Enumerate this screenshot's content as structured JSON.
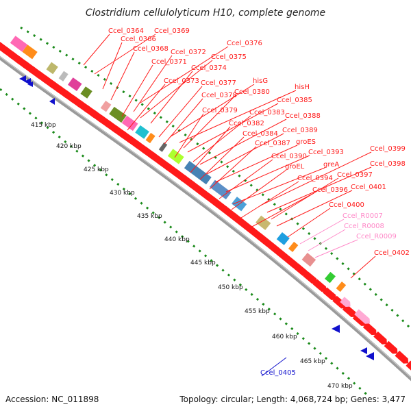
{
  "title": "Clostridium cellulolyticum H10, complete genome",
  "footer": {
    "accession": "Accession: NC_011898",
    "stats": "Topology: circular; Length: 4,068,724 bp; Genes: 3,477"
  },
  "colors": {
    "cds": "#ff1a1a",
    "rna_label": "#ff88c8",
    "reverse_label": "#1010cc",
    "backbone": "#9a9a9a",
    "ticks": "#1a8a1a"
  },
  "scale_labels": [
    "415 kbp",
    "420 kbp",
    "425 kbp",
    "430 kbp",
    "435 kbp",
    "440 kbp",
    "445 kbp",
    "450 kbp",
    "455 kbp",
    "460 kbp",
    "465 kbp",
    "470 kbp"
  ],
  "gene_labels": [
    {
      "text": "Ccel_0364",
      "kind": "cds"
    },
    {
      "text": "Ccel_0369",
      "kind": "cds"
    },
    {
      "text": "Ccel_0366",
      "kind": "cds"
    },
    {
      "text": "Ccel_0376",
      "kind": "cds"
    },
    {
      "text": "Ccel_0368",
      "kind": "cds"
    },
    {
      "text": "Ccel_0372",
      "kind": "cds"
    },
    {
      "text": "Ccel_0375",
      "kind": "cds"
    },
    {
      "text": "Ccel_0371",
      "kind": "cds"
    },
    {
      "text": "Ccel_0374",
      "kind": "cds"
    },
    {
      "text": "Ccel_0373",
      "kind": "cds"
    },
    {
      "text": "Ccel_0377",
      "kind": "cds"
    },
    {
      "text": "hisG",
      "kind": "cds"
    },
    {
      "text": "hisH",
      "kind": "cds"
    },
    {
      "text": "Ccel_0378",
      "kind": "cds"
    },
    {
      "text": "Ccel_0380",
      "kind": "cds"
    },
    {
      "text": "Ccel_0385",
      "kind": "cds"
    },
    {
      "text": "Ccel_0379",
      "kind": "cds"
    },
    {
      "text": "Ccel_0383",
      "kind": "cds"
    },
    {
      "text": "Ccel_0388",
      "kind": "cds"
    },
    {
      "text": "Ccel_0382",
      "kind": "cds"
    },
    {
      "text": "Ccel_0389",
      "kind": "cds"
    },
    {
      "text": "Ccel_0384",
      "kind": "cds"
    },
    {
      "text": "groES",
      "kind": "cds"
    },
    {
      "text": "Ccel_0387",
      "kind": "cds"
    },
    {
      "text": "Ccel_0393",
      "kind": "cds"
    },
    {
      "text": "Ccel_0399",
      "kind": "cds"
    },
    {
      "text": "Ccel_0390",
      "kind": "cds"
    },
    {
      "text": "greA",
      "kind": "cds"
    },
    {
      "text": "Ccel_0398",
      "kind": "cds"
    },
    {
      "text": "groEL",
      "kind": "cds"
    },
    {
      "text": "Ccel_0397",
      "kind": "cds"
    },
    {
      "text": "Ccel_0394",
      "kind": "cds"
    },
    {
      "text": "Ccel_0401",
      "kind": "cds"
    },
    {
      "text": "Ccel_0396",
      "kind": "cds"
    },
    {
      "text": "Ccel_0400",
      "kind": "cds"
    },
    {
      "text": "Ccel_R0007",
      "kind": "rna"
    },
    {
      "text": "Ccel_R0008",
      "kind": "rna"
    },
    {
      "text": "Ccel_R0009",
      "kind": "rna"
    },
    {
      "text": "Ccel_0402",
      "kind": "cds"
    },
    {
      "text": "Ccel_0405",
      "kind": "reverse"
    }
  ]
}
